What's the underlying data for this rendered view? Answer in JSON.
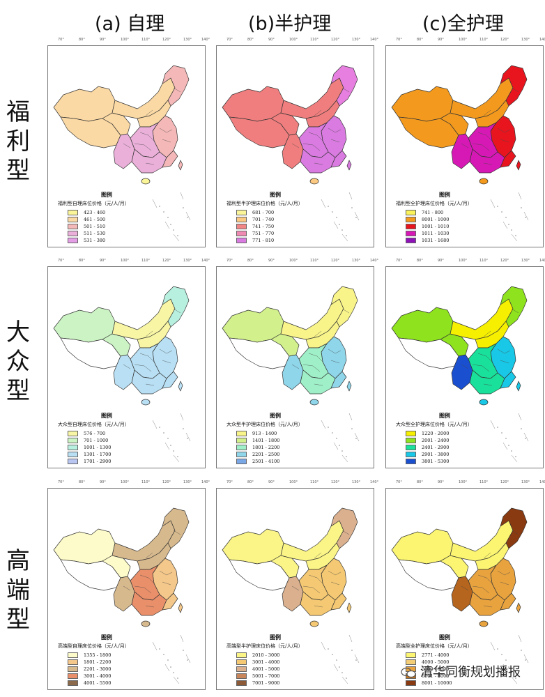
{
  "columns": [
    "(a) 自理",
    "(b)半护理",
    "(c)全护理"
  ],
  "rows": [
    {
      "chars": [
        "福",
        "利",
        "型"
      ]
    },
    {
      "chars": [
        "大",
        "众",
        "型"
      ]
    },
    {
      "chars": [
        "高",
        "端",
        "型"
      ]
    }
  ],
  "ticks": [
    "70°",
    "80°",
    "90°",
    "100°",
    "110°",
    "120°",
    "130°",
    "140°"
  ],
  "legend_title": "图例",
  "panels": [
    {
      "id": "r0c0",
      "subtitle": "福利型自理床位价格（元/人/月）",
      "items": [
        {
          "label": "423 - 460",
          "color": "#fbf59a"
        },
        {
          "label": "461 - 500",
          "color": "#fbd9a4"
        },
        {
          "label": "501 - 510",
          "color": "#f5b8b8"
        },
        {
          "label": "511 - 530",
          "color": "#eab0d9"
        },
        {
          "label": "531 - 380",
          "color": "#e39ee6"
        }
      ],
      "fill": {
        "west": "#fbd9a4",
        "northeast": "#f5b8b8",
        "north": "#fbd9a4",
        "east": "#f5b8b8",
        "south": "#eab0d9",
        "southwest": "#eab0d9",
        "hainan": "#fbf59a"
      }
    },
    {
      "id": "r0c1",
      "subtitle": "福利型半护理床位价格（元/人/月）",
      "items": [
        {
          "label": "681 - 700",
          "color": "#fbf59a"
        },
        {
          "label": "701 - 740",
          "color": "#fbc981"
        },
        {
          "label": "741 - 750",
          "color": "#f28585"
        },
        {
          "label": "751 - 770",
          "color": "#ef8bb3"
        },
        {
          "label": "771 - 810",
          "color": "#d97be0"
        }
      ],
      "fill": {
        "west": "#f17e7e",
        "northeast": "#e77fe0",
        "north": "#f17e7e",
        "east": "#d97be0",
        "south": "#d97be0",
        "southwest": "#f17e7e",
        "hainan": "#fbc981"
      }
    },
    {
      "id": "r0c2",
      "subtitle": "福利型全护理床位价格（元/人/月）",
      "items": [
        {
          "label": "741 - 800",
          "color": "#faf25a"
        },
        {
          "label": "8001 - 1000",
          "color": "#f39a1e"
        },
        {
          "label": "1001 - 1010",
          "color": "#e8151f"
        },
        {
          "label": "1011 - 1030",
          "color": "#d619b4"
        },
        {
          "label": "1031 - 1680",
          "color": "#8e12b8"
        }
      ],
      "fill": {
        "west": "#f39a1e",
        "northeast": "#e8151f",
        "north": "#f39a1e",
        "east": "#e8151f",
        "south": "#d619b4",
        "southwest": "#d619b4",
        "hainan": "#f39a1e"
      }
    },
    {
      "id": "r1c0",
      "subtitle": "大众型自理床位价格（元/人/月）",
      "items": [
        {
          "label": "576 - 700",
          "color": "#f8f6a4"
        },
        {
          "label": "701 - 1000",
          "color": "#ccf3c4"
        },
        {
          "label": "1001 - 1300",
          "color": "#b8f0e0"
        },
        {
          "label": "1301 - 1700",
          "color": "#b8dff3"
        },
        {
          "label": "1701 - 2900",
          "color": "#b9c6f2"
        }
      ],
      "fill": {
        "west": "#ffffff",
        "northwest": "#ccf3c4",
        "northeast": "#b8f0e0",
        "north": "#f8f6a4",
        "east": "#b8dff3",
        "south": "#b8dff3",
        "southwest": "#b8dff3",
        "hainan": "#b8dff3"
      }
    },
    {
      "id": "r1c1",
      "subtitle": "大众型半护理床位价格（元/人/月）",
      "items": [
        {
          "label": "913 - 1400",
          "color": "#f8f48a"
        },
        {
          "label": "1401 - 1800",
          "color": "#d2f08c"
        },
        {
          "label": "1801 - 2200",
          "color": "#9ff0c8"
        },
        {
          "label": "2201 - 2500",
          "color": "#8fd6ea"
        },
        {
          "label": "2501 - 4100",
          "color": "#7aa8e6"
        }
      ],
      "fill": {
        "west": "#ffffff",
        "northwest": "#d2f08c",
        "northeast": "#f8f48a",
        "north": "#f8f48a",
        "east": "#8fd6ea",
        "south": "#9ff0c8",
        "southwest": "#8fd6ea",
        "hainan": "#8fd6ea"
      }
    },
    {
      "id": "r1c2",
      "subtitle": "大众型全护理床位价格（元/人/月）",
      "items": [
        {
          "label": "1220 - 2000",
          "color": "#f6f000"
        },
        {
          "label": "2001 - 2400",
          "color": "#8ee21e"
        },
        {
          "label": "2401 - 2900",
          "color": "#19e09a"
        },
        {
          "label": "2901 - 3800",
          "color": "#19c8e6"
        },
        {
          "label": "3801 - 5300",
          "color": "#1a4fd0"
        }
      ],
      "fill": {
        "west": "#ffffff",
        "northwest": "#8ee21e",
        "northeast": "#8ee21e",
        "north": "#f6f000",
        "east": "#19c8e6",
        "south": "#19e09a",
        "southwest": "#1a4fd0",
        "hainan": "#19c8e6"
      }
    },
    {
      "id": "r2c0",
      "subtitle": "高端型自理床位价格（元/人/月）",
      "items": [
        {
          "label": "1355 - 1800",
          "color": "#fdfbc9"
        },
        {
          "label": "1801 - 2200",
          "color": "#f4c78a"
        },
        {
          "label": "2201 - 3000",
          "color": "#d7b98e"
        },
        {
          "label": "3001 - 4000",
          "color": "#e98f6a"
        },
        {
          "label": "4001 - 5500",
          "color": "#8a6a4a"
        }
      ],
      "fill": {
        "west": "#ffffff",
        "northwest": "#fdfbc9",
        "northeast": "#d7b98e",
        "north": "#d7b98e",
        "east": "#f4c78a",
        "south": "#e98f6a",
        "southwest": "#d7b98e",
        "hainan": "#d7b98e"
      }
    },
    {
      "id": "r2c1",
      "subtitle": "高端型半护理床位价格（元/人/月）",
      "items": [
        {
          "label": "2010 - 3000",
          "color": "#fbf587"
        },
        {
          "label": "3001 - 4000",
          "color": "#f5c973"
        },
        {
          "label": "4001 - 5000",
          "color": "#dab08e"
        },
        {
          "label": "5001 - 7000",
          "color": "#c9855a"
        },
        {
          "label": "7001 - 9000",
          "color": "#8c5a36"
        }
      ],
      "fill": {
        "west": "#ffffff",
        "northwest": "#fbf587",
        "northeast": "#dab08e",
        "north": "#fbf587",
        "east": "#f5c973",
        "south": "#f5c973",
        "southwest": "#dab08e",
        "hainan": "#f5c973"
      }
    },
    {
      "id": "r2c2",
      "subtitle": "高端型全护理床位价格（元/人/月）",
      "items": [
        {
          "label": "2771 - 4000",
          "color": "#fbf571"
        },
        {
          "label": "4000 - 5000",
          "color": "#f3cd76"
        },
        {
          "label": "5000 - 6000",
          "color": "#e8a33f"
        },
        {
          "label": "6001 - 8000",
          "color": "#c0721e"
        },
        {
          "label": "8001 - 10000",
          "color": "#8a3a10"
        }
      ],
      "fill": {
        "west": "#ffffff",
        "northwest": "#fbf571",
        "northeast": "#8a3a10",
        "north": "#fbf571",
        "east": "#e8a33f",
        "south": "#e8a33f",
        "southwest": "#b5651d",
        "hainan": "#e8a33f"
      }
    }
  ],
  "watermark": "清华同衡规划播报"
}
